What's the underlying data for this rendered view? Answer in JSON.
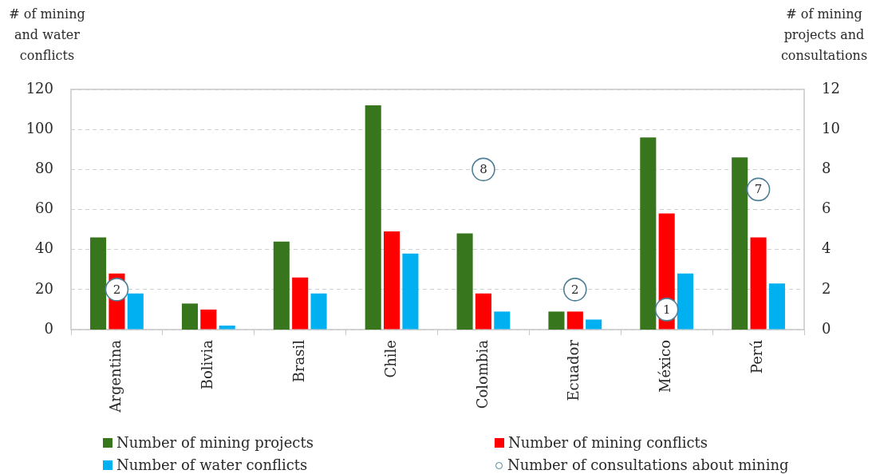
{
  "chart_data": {
    "type": "bar",
    "ylabel": "# of mining and water conflicts",
    "y2label": "# of mining projects and consultations",
    "categories": [
      "Argentina",
      "Bolivia",
      "Brasil",
      "Chile",
      "Colombia",
      "Ecuador",
      "México",
      "Perú"
    ],
    "series": [
      {
        "name": "Number of mining projects",
        "color": "#38761d",
        "axis": "y2",
        "values": [
          4.6,
          1.3,
          4.4,
          11.2,
          4.8,
          0.9,
          9.6,
          8.6
        ]
      },
      {
        "name": "Number of mining conflicts",
        "color": "#ff0000",
        "values": [
          28,
          10,
          26,
          49,
          18,
          9,
          58,
          46
        ]
      },
      {
        "name": "Number of water conflicts",
        "color": "#00b0f0",
        "values": [
          18,
          2,
          18,
          38,
          9,
          5,
          28,
          23
        ]
      },
      {
        "name": "Number of consultations about mining",
        "type": "scatter",
        "axis": "y2",
        "color": "#4f7f95",
        "marker": "circle",
        "values": [
          2,
          null,
          null,
          null,
          8,
          2,
          1,
          7
        ],
        "value_labels": [
          "2",
          null,
          null,
          null,
          "8",
          "2",
          "1",
          "7"
        ]
      }
    ],
    "ylim": [
      0,
      120
    ],
    "yticks": [
      0,
      20,
      40,
      60,
      80,
      100,
      120
    ],
    "y2lim": [
      0,
      12
    ],
    "y2ticks": [
      0,
      2,
      4,
      6,
      8,
      10,
      12
    ],
    "grid": "y",
    "legend": "bottom"
  }
}
